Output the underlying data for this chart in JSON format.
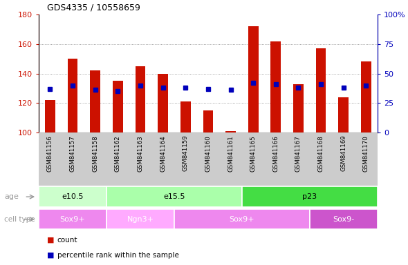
{
  "title": "GDS4335 / 10558659",
  "samples": [
    "GSM841156",
    "GSM841157",
    "GSM841158",
    "GSM841162",
    "GSM841163",
    "GSM841164",
    "GSM841159",
    "GSM841160",
    "GSM841161",
    "GSM841165",
    "GSM841166",
    "GSM841167",
    "GSM841168",
    "GSM841169",
    "GSM841170"
  ],
  "bar_values": [
    122,
    150,
    142,
    135,
    145,
    140,
    121,
    115,
    101,
    172,
    162,
    133,
    157,
    124,
    148
  ],
  "dot_values_pct": [
    37,
    40,
    36,
    35,
    40,
    38,
    38,
    37,
    36,
    42,
    41,
    38,
    41,
    38,
    40
  ],
  "bar_base": 100,
  "ylim_left": [
    100,
    180
  ],
  "ylim_right": [
    0,
    100
  ],
  "yticks_left": [
    100,
    120,
    140,
    160,
    180
  ],
  "yticks_right": [
    0,
    25,
    50,
    75,
    100
  ],
  "ytick_right_labels": [
    "0",
    "25",
    "50",
    "75",
    "100%"
  ],
  "bar_color": "#cc1100",
  "dot_color": "#0000bb",
  "grid_color": "#888888",
  "age_groups": [
    {
      "label": "e10.5",
      "start": 0,
      "end": 3,
      "color": "#ccffcc"
    },
    {
      "label": "e15.5",
      "start": 3,
      "end": 9,
      "color": "#aaffaa"
    },
    {
      "label": "p23",
      "start": 9,
      "end": 15,
      "color": "#44dd44"
    }
  ],
  "cell_groups": [
    {
      "label": "Sox9+",
      "start": 0,
      "end": 3,
      "color": "#ee88ee"
    },
    {
      "label": "Ngn3+",
      "start": 3,
      "end": 6,
      "color": "#ffaaff"
    },
    {
      "label": "Sox9+",
      "start": 6,
      "end": 12,
      "color": "#ee88ee"
    },
    {
      "label": "Sox9-",
      "start": 12,
      "end": 15,
      "color": "#cc55cc"
    }
  ],
  "xtick_bg_color": "#cccccc",
  "age_label": "age",
  "cell_type_label": "cell type",
  "legend_count_label": "count",
  "legend_pct_label": "percentile rank within the sample",
  "fig_bg": "#ffffff"
}
